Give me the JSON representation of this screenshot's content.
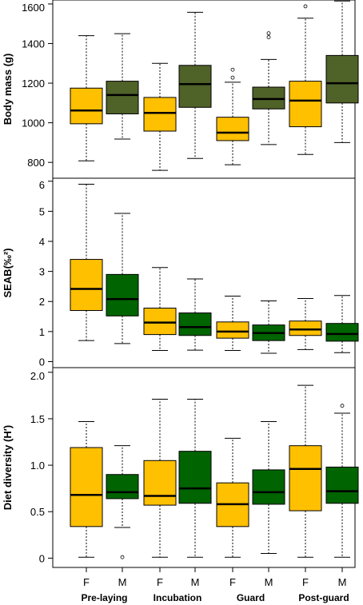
{
  "colors": {
    "female": "#FFC000",
    "male_body_mass": "#4F6228",
    "male_other": "#006400",
    "frame": "#000000"
  },
  "chart_data": [
    {
      "type": "box",
      "ylabel": "Body mass (g)",
      "ylim": [
        720,
        1620
      ],
      "ticks": [
        800,
        1000,
        1200,
        1400,
        1600
      ],
      "tick_labels": [
        "800",
        "1000",
        "1200",
        "1400",
        "1600"
      ],
      "male_color_key": "male_body_mass",
      "boxes": [
        {
          "sex": "F",
          "stage": "Pre-laying",
          "whisker_low": 808,
          "q1": 995,
          "median": 1062,
          "q3": 1175,
          "whisker_high": 1440,
          "outliers": []
        },
        {
          "sex": "M",
          "stage": "Pre-laying",
          "whisker_low": 918,
          "q1": 1045,
          "median": 1140,
          "q3": 1210,
          "whisker_high": 1450,
          "outliers": []
        },
        {
          "sex": "F",
          "stage": "Incubation",
          "whisker_low": 760,
          "q1": 958,
          "median": 1050,
          "q3": 1128,
          "whisker_high": 1300,
          "outliers": []
        },
        {
          "sex": "M",
          "stage": "Incubation",
          "whisker_low": 820,
          "q1": 1078,
          "median": 1195,
          "q3": 1290,
          "whisker_high": 1558,
          "outliers": []
        },
        {
          "sex": "F",
          "stage": "Guard",
          "whisker_low": 788,
          "q1": 910,
          "median": 950,
          "q3": 1028,
          "whisker_high": 1205,
          "outliers": [
            1228,
            1268
          ]
        },
        {
          "sex": "M",
          "stage": "Guard",
          "whisker_low": 890,
          "q1": 1070,
          "median": 1120,
          "q3": 1180,
          "whisker_high": 1320,
          "outliers": [
            1432,
            1452
          ]
        },
        {
          "sex": "F",
          "stage": "Post-guard",
          "whisker_low": 840,
          "q1": 980,
          "median": 1112,
          "q3": 1210,
          "whisker_high": 1528,
          "outliers": [
            1588
          ]
        },
        {
          "sex": "M",
          "stage": "Post-guard",
          "whisker_low": 900,
          "q1": 1100,
          "median": 1200,
          "q3": 1340,
          "whisker_high": 1615,
          "outliers": []
        }
      ]
    },
    {
      "type": "box",
      "ylabel": "SEAB(‰²)",
      "ylim": [
        -0.2,
        6.1
      ],
      "ticks": [
        0,
        1,
        2,
        3,
        4,
        5,
        6
      ],
      "tick_labels": [
        "0",
        "1",
        "2",
        "3",
        "4",
        "5",
        "6"
      ],
      "male_color_key": "male_other",
      "boxes": [
        {
          "sex": "F",
          "stage": "Pre-laying",
          "whisker_low": 0.7,
          "q1": 1.7,
          "median": 2.42,
          "q3": 3.4,
          "whisker_high": 5.9,
          "outliers": []
        },
        {
          "sex": "M",
          "stage": "Pre-laying",
          "whisker_low": 0.6,
          "q1": 1.52,
          "median": 2.08,
          "q3": 2.9,
          "whisker_high": 4.93,
          "outliers": []
        },
        {
          "sex": "F",
          "stage": "Incubation",
          "whisker_low": 0.37,
          "q1": 0.9,
          "median": 1.3,
          "q3": 1.78,
          "whisker_high": 3.13,
          "outliers": []
        },
        {
          "sex": "M",
          "stage": "Incubation",
          "whisker_low": 0.38,
          "q1": 0.87,
          "median": 1.15,
          "q3": 1.62,
          "whisker_high": 2.75,
          "outliers": []
        },
        {
          "sex": "F",
          "stage": "Guard",
          "whisker_low": 0.37,
          "q1": 0.78,
          "median": 1.0,
          "q3": 1.32,
          "whisker_high": 2.18,
          "outliers": []
        },
        {
          "sex": "M",
          "stage": "Guard",
          "whisker_low": 0.28,
          "q1": 0.7,
          "median": 0.95,
          "q3": 1.22,
          "whisker_high": 2.02,
          "outliers": []
        },
        {
          "sex": "F",
          "stage": "Post-guard",
          "whisker_low": 0.4,
          "q1": 0.87,
          "median": 1.07,
          "q3": 1.35,
          "whisker_high": 2.1,
          "outliers": []
        },
        {
          "sex": "M",
          "stage": "Post-guard",
          "whisker_low": 0.3,
          "q1": 0.68,
          "median": 0.92,
          "q3": 1.27,
          "whisker_high": 2.2,
          "outliers": []
        }
      ]
    },
    {
      "type": "box",
      "ylabel": "Diet diversity (H′)",
      "ylim": [
        -0.1,
        2.05
      ],
      "ticks": [
        0.0,
        0.5,
        1.0,
        1.5,
        2.0
      ],
      "tick_labels": [
        "0",
        "0.5",
        "1.0",
        "1.5",
        "2.0"
      ],
      "male_color_key": "male_other",
      "boxes": [
        {
          "sex": "F",
          "stage": "Pre-laying",
          "whisker_low": 0.01,
          "q1": 0.34,
          "median": 0.68,
          "q3": 1.19,
          "whisker_high": 1.47,
          "outliers": []
        },
        {
          "sex": "M",
          "stage": "Pre-laying",
          "whisker_low": 0.33,
          "q1": 0.64,
          "median": 0.71,
          "q3": 0.9,
          "whisker_high": 1.21,
          "outliers": [
            0.01
          ]
        },
        {
          "sex": "F",
          "stage": "Incubation",
          "whisker_low": 0.01,
          "q1": 0.57,
          "median": 0.67,
          "q3": 1.05,
          "whisker_high": 1.71,
          "outliers": []
        },
        {
          "sex": "M",
          "stage": "Incubation",
          "whisker_low": 0.01,
          "q1": 0.59,
          "median": 0.75,
          "q3": 1.15,
          "whisker_high": 1.71,
          "outliers": []
        },
        {
          "sex": "F",
          "stage": "Guard",
          "whisker_low": 0.01,
          "q1": 0.34,
          "median": 0.58,
          "q3": 0.81,
          "whisker_high": 1.29,
          "outliers": []
        },
        {
          "sex": "M",
          "stage": "Guard",
          "whisker_low": 0.05,
          "q1": 0.58,
          "median": 0.71,
          "q3": 0.95,
          "whisker_high": 1.47,
          "outliers": []
        },
        {
          "sex": "F",
          "stage": "Post-guard",
          "whisker_low": 0.01,
          "q1": 0.51,
          "median": 0.96,
          "q3": 1.21,
          "whisker_high": 1.86,
          "outliers": []
        },
        {
          "sex": "M",
          "stage": "Post-guard",
          "whisker_low": 0.01,
          "q1": 0.59,
          "median": 0.72,
          "q3": 0.98,
          "whisker_high": 1.56,
          "outliers": [
            1.64
          ]
        }
      ]
    }
  ],
  "x_axis": {
    "sex_labels": [
      "F",
      "M",
      "F",
      "M",
      "F",
      "M",
      "F",
      "M"
    ],
    "group_labels": [
      "Pre-laying",
      "Incubation",
      "Guard",
      "Post-guard"
    ]
  }
}
